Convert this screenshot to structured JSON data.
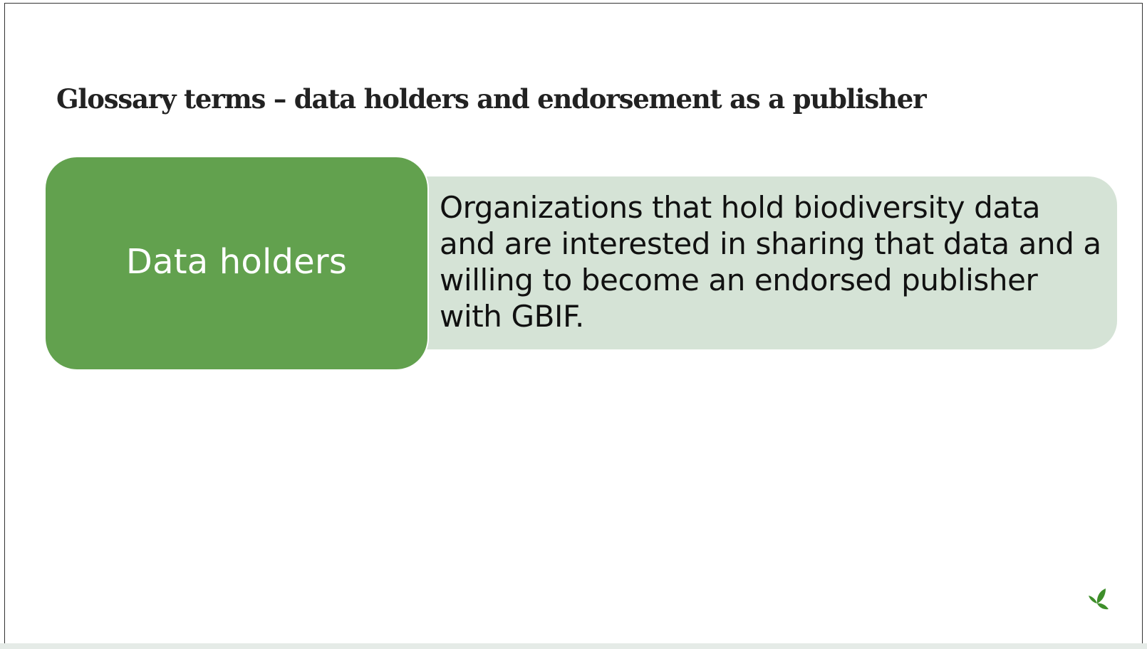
{
  "slide": {
    "title": "Glossary terms – data holders and endorsement as a publisher",
    "term": "Data holders",
    "definition": "Organizations that hold biodiversity data and are interested in sharing that data and a willing to become an endorsed publisher with GBIF.",
    "logo_icon": "gbif-leaf-icon"
  },
  "colors": {
    "term_bg": "#62a14e",
    "definition_bg": "#d5e3d6",
    "logo": "#3e8e2a"
  }
}
